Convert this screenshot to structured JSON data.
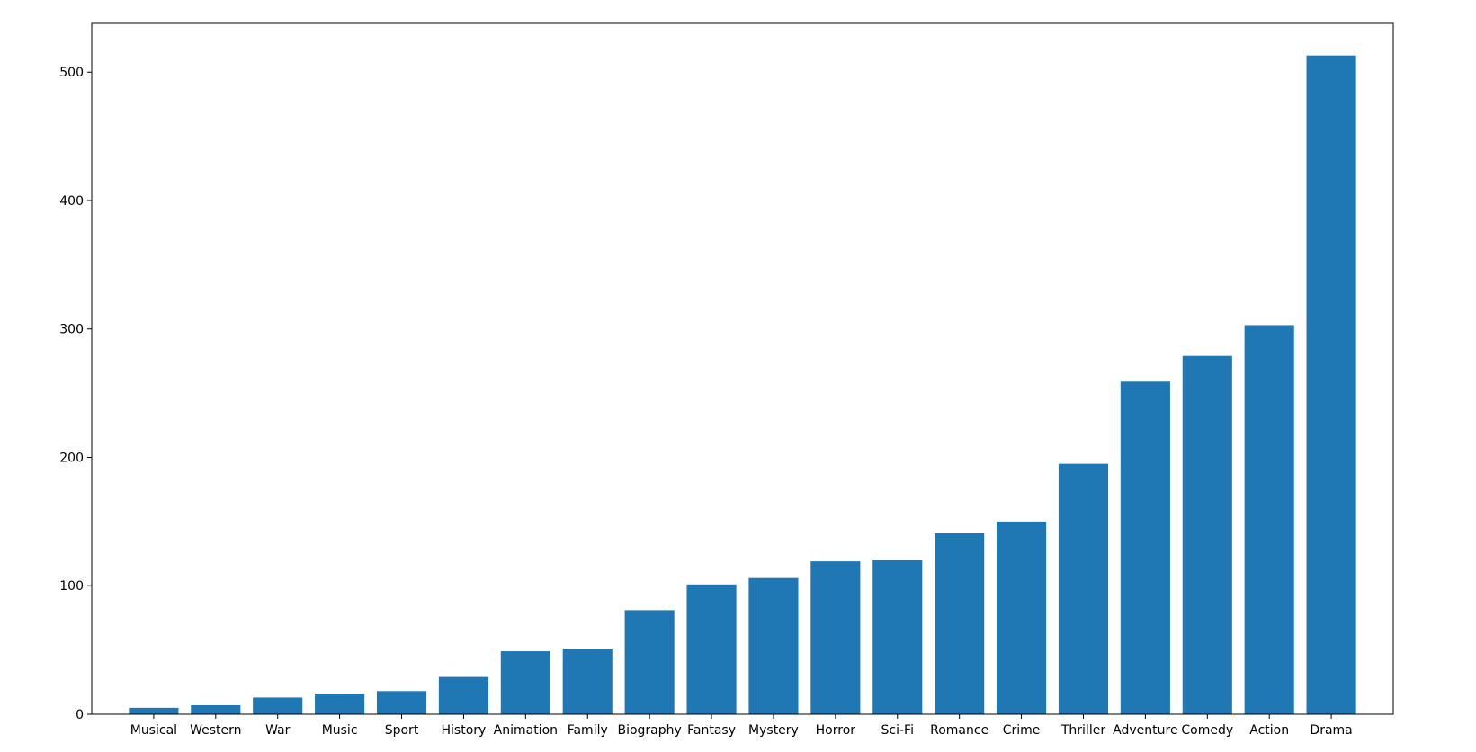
{
  "chart_data": {
    "type": "bar",
    "categories": [
      "Musical",
      "Western",
      "War",
      "Music",
      "Sport",
      "History",
      "Animation",
      "Family",
      "Biography",
      "Fantasy",
      "Mystery",
      "Horror",
      "Sci-Fi",
      "Romance",
      "Crime",
      "Thriller",
      "Adventure",
      "Comedy",
      "Action",
      "Drama"
    ],
    "values": [
      5,
      7,
      13,
      16,
      18,
      29,
      49,
      51,
      81,
      101,
      106,
      119,
      120,
      141,
      150,
      195,
      259,
      279,
      303,
      513
    ],
    "ylim": [
      0,
      538
    ],
    "yticks": [
      0,
      100,
      200,
      300,
      400,
      500
    ],
    "grid": false,
    "legend": "none",
    "bar_color": "#1f77b4"
  }
}
